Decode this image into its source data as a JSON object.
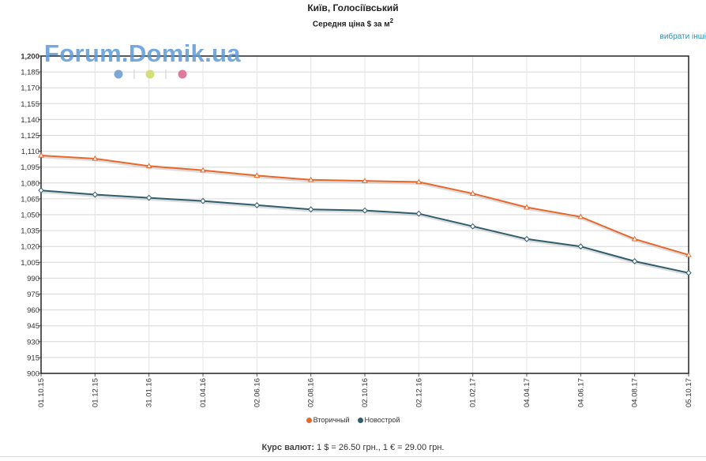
{
  "header": {
    "title": "Київ, Голосіївський",
    "subtitle_text": "Середня ціна $ за м",
    "subtitle_sup": "2",
    "other_link": "вибрати інші"
  },
  "watermark": "Forum.Domik.ua",
  "decor_dots": [
    "#7ea6d6",
    "#d4de7a",
    "#de7a9a"
  ],
  "footer": {
    "label": "Курс валют:",
    "rates": "1 $ = 26.50 грн., 1 € = 29.00 грн."
  },
  "chart_data": {
    "type": "line",
    "categories": [
      "01.10.15",
      "01.12.15",
      "31.01.16",
      "01.04.16",
      "02.06.16",
      "02.08.16",
      "02.10.16",
      "02.12.16",
      "01.02.17",
      "04.04.17",
      "04.06.17",
      "04.08.17",
      "05.10.17"
    ],
    "series": [
      {
        "name": "Вторичный",
        "color": "#e8672a",
        "marker": "triangle",
        "values": [
          1106,
          1103,
          1096,
          1092,
          1087,
          1083,
          1082,
          1081,
          1070,
          1057,
          1048,
          1027,
          1012
        ]
      },
      {
        "name": "Новострой",
        "color": "#2f5d6e",
        "marker": "diamond",
        "values": [
          1073,
          1069,
          1066,
          1063,
          1059,
          1055,
          1054,
          1051,
          1039,
          1027,
          1020,
          1006,
          995
        ]
      }
    ],
    "ylim": [
      900,
      1200
    ],
    "yticks": [
      "900",
      "915",
      "930",
      "945",
      "960",
      "975",
      "990",
      "1,005",
      "1,020",
      "1,035",
      "1,050",
      "1,065",
      "1,080",
      "1,095",
      "1,110",
      "1,125",
      "1,140",
      "1,155",
      "1,170",
      "1,185",
      "1,200"
    ],
    "grid": true,
    "legend_position": "bottom"
  }
}
